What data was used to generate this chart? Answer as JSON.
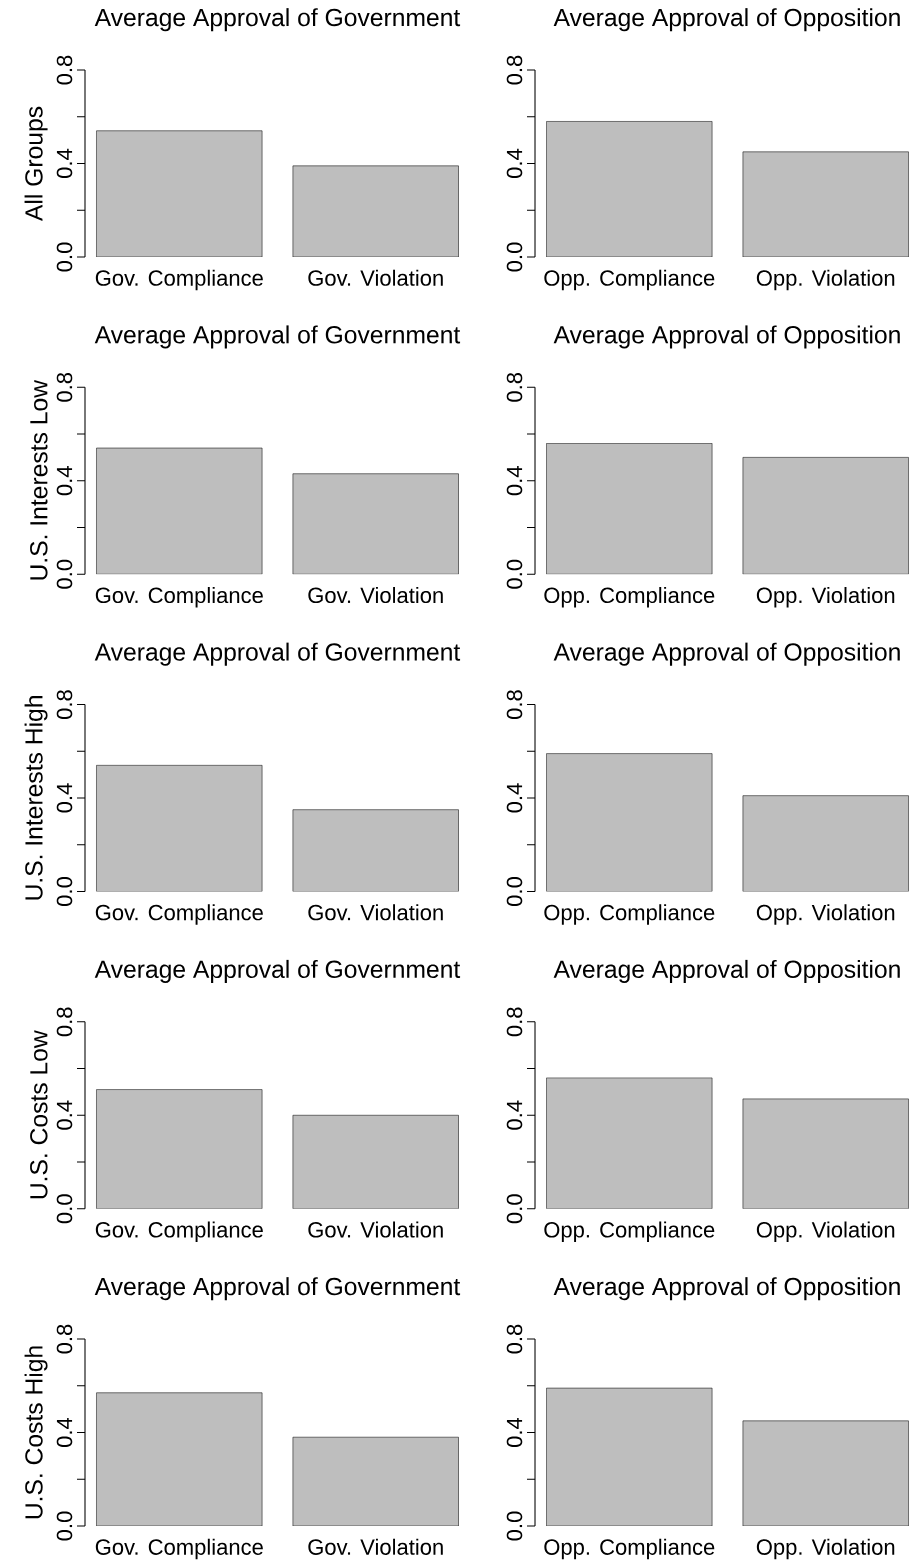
{
  "chart_data": [
    {
      "type": "bar",
      "title": "Average Approval of Government",
      "ylabel": "All Groups",
      "categories": [
        "Gov. Compliance",
        "Gov. Violation"
      ],
      "values": [
        0.54,
        0.39
      ],
      "color": "#bebebe",
      "ylim": [
        0,
        0.8
      ],
      "yticks": [
        {
          "value": 0,
          "label": "0.0"
        },
        {
          "value": 0.2,
          "label": null
        },
        {
          "value": 0.4,
          "label": "0.4"
        },
        {
          "value": 0.6,
          "label": null
        },
        {
          "value": 0.8,
          "label": "0.8"
        }
      ]
    },
    {
      "type": "bar",
      "title": "Average Approval of Opposition",
      "categories": [
        "Opp. Compliance",
        "Opp. Violation"
      ],
      "values": [
        0.58,
        0.45
      ],
      "color": "#bebebe",
      "ylim": [
        0,
        0.8
      ],
      "yticks": [
        {
          "value": 0,
          "label": "0.0"
        },
        {
          "value": 0.2,
          "label": null
        },
        {
          "value": 0.4,
          "label": "0.4"
        },
        {
          "value": 0.6,
          "label": null
        },
        {
          "value": 0.8,
          "label": "0.8"
        }
      ]
    },
    {
      "type": "bar",
      "title": "Average Approval of Government",
      "ylabel": "U.S. Interests Low",
      "categories": [
        "Gov. Compliance",
        "Gov. Violation"
      ],
      "values": [
        0.54,
        0.43
      ],
      "color": "#bebebe",
      "ylim": [
        0,
        0.8
      ],
      "yticks": [
        {
          "value": 0,
          "label": "0.0"
        },
        {
          "value": 0.2,
          "label": null
        },
        {
          "value": 0.4,
          "label": "0.4"
        },
        {
          "value": 0.6,
          "label": null
        },
        {
          "value": 0.8,
          "label": "0.8"
        }
      ]
    },
    {
      "type": "bar",
      "title": "Average Approval of Opposition",
      "categories": [
        "Opp. Compliance",
        "Opp. Violation"
      ],
      "values": [
        0.56,
        0.5
      ],
      "color": "#bebebe",
      "ylim": [
        0,
        0.8
      ],
      "yticks": [
        {
          "value": 0,
          "label": "0.0"
        },
        {
          "value": 0.2,
          "label": null
        },
        {
          "value": 0.4,
          "label": "0.4"
        },
        {
          "value": 0.6,
          "label": null
        },
        {
          "value": 0.8,
          "label": "0.8"
        }
      ]
    },
    {
      "type": "bar",
      "title": "Average Approval of Government",
      "ylabel": "U.S. Interests High",
      "categories": [
        "Gov. Compliance",
        "Gov. Violation"
      ],
      "values": [
        0.54,
        0.35
      ],
      "color": "#bebebe",
      "ylim": [
        0,
        0.8
      ],
      "yticks": [
        {
          "value": 0,
          "label": "0.0"
        },
        {
          "value": 0.2,
          "label": null
        },
        {
          "value": 0.4,
          "label": "0.4"
        },
        {
          "value": 0.6,
          "label": null
        },
        {
          "value": 0.8,
          "label": "0.8"
        }
      ]
    },
    {
      "type": "bar",
      "title": "Average Approval of Opposition",
      "categories": [
        "Opp. Compliance",
        "Opp. Violation"
      ],
      "values": [
        0.59,
        0.41
      ],
      "color": "#bebebe",
      "ylim": [
        0,
        0.8
      ],
      "yticks": [
        {
          "value": 0,
          "label": "0.0"
        },
        {
          "value": 0.2,
          "label": null
        },
        {
          "value": 0.4,
          "label": "0.4"
        },
        {
          "value": 0.6,
          "label": null
        },
        {
          "value": 0.8,
          "label": "0.8"
        }
      ]
    },
    {
      "type": "bar",
      "title": "Average Approval of Government",
      "ylabel": "U.S. Costs Low",
      "categories": [
        "Gov. Compliance",
        "Gov. Violation"
      ],
      "values": [
        0.51,
        0.4
      ],
      "color": "#bebebe",
      "ylim": [
        0,
        0.8
      ],
      "yticks": [
        {
          "value": 0,
          "label": "0.0"
        },
        {
          "value": 0.2,
          "label": null
        },
        {
          "value": 0.4,
          "label": "0.4"
        },
        {
          "value": 0.6,
          "label": null
        },
        {
          "value": 0.8,
          "label": "0.8"
        }
      ]
    },
    {
      "type": "bar",
      "title": "Average Approval of Opposition",
      "categories": [
        "Opp. Compliance",
        "Opp. Violation"
      ],
      "values": [
        0.56,
        0.47
      ],
      "color": "#bebebe",
      "ylim": [
        0,
        0.8
      ],
      "yticks": [
        {
          "value": 0,
          "label": "0.0"
        },
        {
          "value": 0.2,
          "label": null
        },
        {
          "value": 0.4,
          "label": "0.4"
        },
        {
          "value": 0.6,
          "label": null
        },
        {
          "value": 0.8,
          "label": "0.8"
        }
      ]
    },
    {
      "type": "bar",
      "title": "Average Approval of Government",
      "ylabel": "U.S. Costs High",
      "categories": [
        "Gov. Compliance",
        "Gov. Violation"
      ],
      "values": [
        0.57,
        0.38
      ],
      "color": "#bebebe",
      "ylim": [
        0,
        0.8
      ],
      "yticks": [
        {
          "value": 0,
          "label": "0.0"
        },
        {
          "value": 0.2,
          "label": null
        },
        {
          "value": 0.4,
          "label": "0.4"
        },
        {
          "value": 0.6,
          "label": null
        },
        {
          "value": 0.8,
          "label": "0.8"
        }
      ]
    },
    {
      "type": "bar",
      "title": "Average Approval of Opposition",
      "categories": [
        "Opp. Compliance",
        "Opp. Violation"
      ],
      "values": [
        0.59,
        0.45
      ],
      "color": "#bebebe",
      "ylim": [
        0,
        0.8
      ],
      "yticks": [
        {
          "value": 0,
          "label": "0.0"
        },
        {
          "value": 0.2,
          "label": null
        },
        {
          "value": 0.4,
          "label": "0.4"
        },
        {
          "value": 0.6,
          "label": null
        },
        {
          "value": 0.8,
          "label": "0.8"
        }
      ]
    }
  ]
}
